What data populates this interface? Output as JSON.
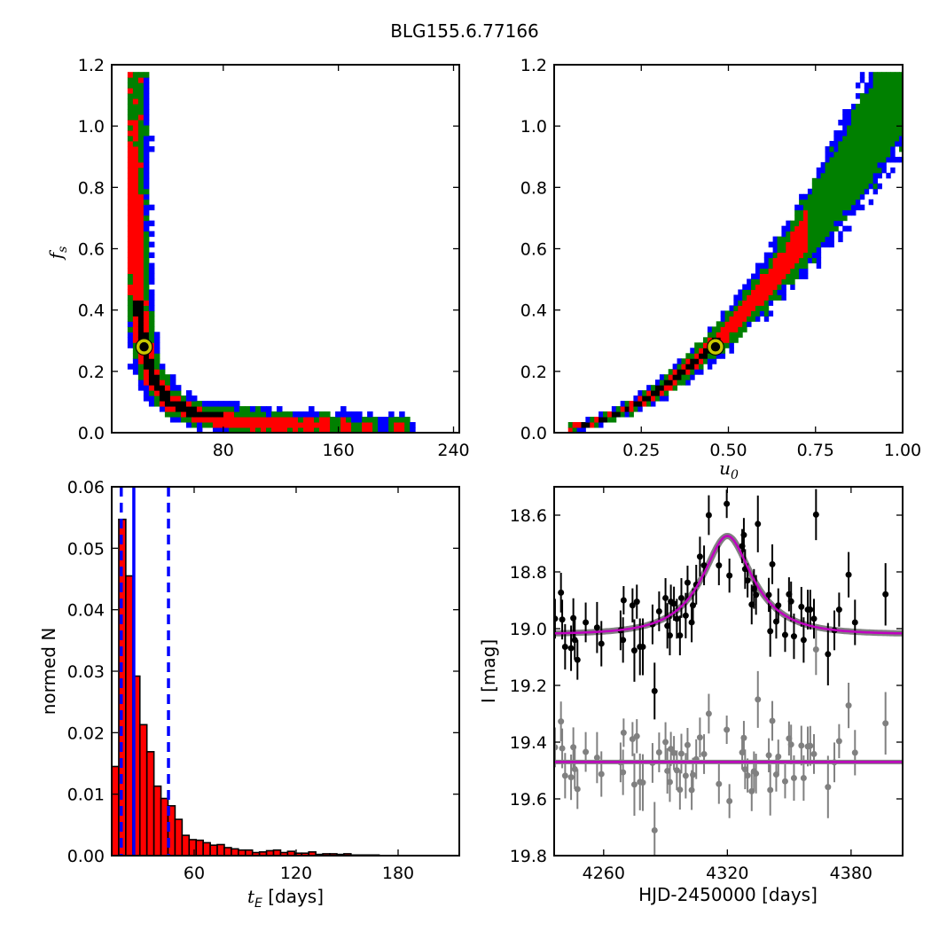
{
  "title": "BLG155.6.77166",
  "colors": {
    "level1": "#000000",
    "level2": "#ff0000",
    "level3": "#008000",
    "level4": "#0000ff",
    "marker": "#c8c800",
    "model": "#c000c0",
    "band": "#808080",
    "residual": "#808080",
    "hist_line": "#0000ff"
  },
  "chart_data": [
    {
      "type": "heatmap",
      "name": "tE-fs",
      "xlabel": "",
      "ylabel": "f",
      "ylabel_sub": "s",
      "xlim": [
        2.5,
        244
      ],
      "ylim": [
        0,
        1.2
      ],
      "xticks": [
        {
          "v": 80,
          "label": "80"
        },
        {
          "v": 160,
          "label": "160"
        },
        {
          "v": 240,
          "label": "240"
        }
      ],
      "yticks": [
        {
          "v": 0,
          "label": "0.0"
        },
        {
          "v": 0.2,
          "label": "0.2"
        },
        {
          "v": 0.4,
          "label": "0.4"
        },
        {
          "v": 0.6,
          "label": "0.6"
        },
        {
          "v": 0.8,
          "label": "0.8"
        },
        {
          "v": 1.0,
          "label": "1.0"
        },
        {
          "v": 1.2,
          "label": "1.2"
        }
      ],
      "relation": {
        "form": "fs = a/(tE - t0)",
        "a": 3.0,
        "t0": 14.3,
        "tE_range": [
          13.5,
          215
        ],
        "fs_max": 1.16
      },
      "best_fit": {
        "tE": 25,
        "fs": 0.28
      }
    },
    {
      "type": "heatmap",
      "name": "u0-fs",
      "xlabel": "u",
      "xlabel_sub": "0",
      "ylabel": "",
      "xlim": [
        0,
        1.0
      ],
      "ylim": [
        0,
        1.2
      ],
      "xticks": [
        {
          "v": 0.25,
          "label": "0.25"
        },
        {
          "v": 0.5,
          "label": "0.50"
        },
        {
          "v": 0.75,
          "label": "0.75"
        },
        {
          "v": 1.0,
          "label": "1.00"
        }
      ],
      "yticks": [
        {
          "v": 0,
          "label": "0.0"
        },
        {
          "v": 0.2,
          "label": "0.2"
        },
        {
          "v": 0.4,
          "label": "0.4"
        },
        {
          "v": 0.6,
          "label": "0.6"
        },
        {
          "v": 0.8,
          "label": "0.8"
        },
        {
          "v": 1.0,
          "label": "1.0"
        },
        {
          "v": 1.2,
          "label": "1.2"
        }
      ],
      "relation": {
        "form": "fs = a*u0^p",
        "a": 1.16,
        "p": 1.83,
        "u0_range": [
          0.04,
          1.0
        ],
        "fs_max": 1.17
      },
      "best_fit": {
        "u0": 0.463,
        "fs": 0.28
      }
    },
    {
      "type": "bar",
      "name": "tE-histogram",
      "xlabel": "t",
      "xlabel_sub": "E",
      "xlabel_suffix": " [days]",
      "ylabel": "normed N",
      "xlim": [
        11.5,
        216
      ],
      "ylim": [
        0,
        0.06
      ],
      "xticks": [
        {
          "v": 60,
          "label": "60"
        },
        {
          "v": 120,
          "label": "120"
        },
        {
          "v": 180,
          "label": "180"
        }
      ],
      "yticks": [
        {
          "v": 0,
          "label": "0.00"
        },
        {
          "v": 0.01,
          "label": "0.01"
        },
        {
          "v": 0.02,
          "label": "0.02"
        },
        {
          "v": 0.03,
          "label": "0.03"
        },
        {
          "v": 0.04,
          "label": "0.04"
        },
        {
          "v": 0.05,
          "label": "0.05"
        },
        {
          "v": 0.06,
          "label": "0.06"
        }
      ],
      "bin_start": 11.5,
      "bin_width": 4.14,
      "values": [
        0.0145,
        0.0547,
        0.0455,
        0.0292,
        0.0213,
        0.0169,
        0.0113,
        0.0093,
        0.0081,
        0.0059,
        0.0033,
        0.0026,
        0.0025,
        0.0021,
        0.0017,
        0.0018,
        0.0013,
        0.0011,
        0.0009,
        0.0009,
        0.0005,
        0.0006,
        0.0008,
        0.0009,
        0.0005,
        0.0007,
        0.0004,
        0.0004,
        0.0006,
        0.0002,
        0.0003,
        0.0003,
        0.0002,
        0.0003,
        0.0001,
        0.0001,
        0.0001,
        0.0001
      ],
      "vlines": [
        {
          "x": 17.1,
          "style": "dashed"
        },
        {
          "x": 24.5,
          "style": "solid"
        },
        {
          "x": 44.9,
          "style": "dashed"
        }
      ]
    },
    {
      "type": "scatter",
      "name": "light-curve",
      "xlabel": "HJD-2450000 [days]",
      "ylabel": "I [mag]",
      "xlim": [
        4236,
        4405
      ],
      "ylim": [
        19.8,
        18.5
      ],
      "y_inverted": true,
      "xticks": [
        {
          "v": 4260,
          "label": "4260"
        },
        {
          "v": 4320,
          "label": "4320"
        },
        {
          "v": 4380,
          "label": "4380"
        }
      ],
      "yticks": [
        {
          "v": 18.6,
          "label": "18.6"
        },
        {
          "v": 18.8,
          "label": "18.8"
        },
        {
          "v": 19.0,
          "label": "19.0"
        },
        {
          "v": 19.2,
          "label": "19.2"
        },
        {
          "v": 19.4,
          "label": "19.4"
        },
        {
          "v": 19.6,
          "label": "19.6"
        },
        {
          "v": 19.8,
          "label": "19.8"
        }
      ],
      "model": {
        "t0": 4320,
        "tE": 25,
        "u0": 0.46,
        "fs": 0.28,
        "baseline": 19.02
      },
      "residual_offset": 19.47,
      "points": [
        [
          4236.4,
          18.965,
          0.07
        ],
        [
          4239.3,
          18.873,
          0.07
        ],
        [
          4239.9,
          18.968,
          0.07
        ],
        [
          4241.3,
          19.064,
          0.08
        ],
        [
          4244.2,
          19.069,
          0.08
        ],
        [
          4245.3,
          18.963,
          0.07
        ],
        [
          4246.0,
          19.04,
          0.07
        ],
        [
          4247.3,
          19.11,
          0.07
        ],
        [
          4251.3,
          18.978,
          0.07
        ],
        [
          4256.8,
          18.996,
          0.09
        ],
        [
          4258.9,
          19.053,
          0.08
        ],
        [
          4268.2,
          19.006,
          0.07
        ],
        [
          4269.4,
          19.04,
          0.08
        ],
        [
          4269.7,
          18.9,
          0.05
        ],
        [
          4274.0,
          18.918,
          0.06
        ],
        [
          4274.9,
          19.077,
          0.11
        ],
        [
          4276.1,
          18.905,
          0.06
        ],
        [
          4277.6,
          19.064,
          0.1
        ],
        [
          4279.0,
          19.064,
          0.1
        ],
        [
          4283.7,
          18.985,
          0.07
        ],
        [
          4284.7,
          19.22,
          0.1
        ],
        [
          4286.9,
          18.939,
          0.07
        ],
        [
          4290.0,
          18.892,
          0.07
        ],
        [
          4290.9,
          18.99,
          0.08
        ],
        [
          4292.1,
          19.024,
          0.07
        ],
        [
          4292.6,
          18.905,
          0.06
        ],
        [
          4294.1,
          18.912,
          0.06
        ],
        [
          4295.5,
          18.965,
          0.07
        ],
        [
          4297.0,
          19.024,
          0.07
        ],
        [
          4297.7,
          18.892,
          0.07
        ],
        [
          4299.8,
          18.954,
          0.08
        ],
        [
          4300.7,
          18.838,
          0.06
        ],
        [
          4302.7,
          18.978,
          0.07
        ],
        [
          4303.3,
          18.918,
          0.06
        ],
        [
          4304.9,
          18.845,
          0.07
        ],
        [
          4306.7,
          18.746,
          0.07
        ],
        [
          4308.7,
          18.777,
          0.07
        ],
        [
          4311.0,
          18.6,
          0.07
        ],
        [
          4315.9,
          18.777,
          0.07
        ],
        [
          4319.7,
          18.56,
          0.05
        ],
        [
          4321.0,
          18.813,
          0.06
        ],
        [
          4327.2,
          18.709,
          0.06
        ],
        [
          4328.0,
          18.67,
          0.06
        ],
        [
          4328.6,
          18.79,
          0.07
        ],
        [
          4329.8,
          18.83,
          0.06
        ],
        [
          4331.8,
          18.915,
          0.07
        ],
        [
          4332.9,
          18.86,
          0.07
        ],
        [
          4333.9,
          18.881,
          0.07
        ],
        [
          4334.8,
          18.631,
          0.1
        ],
        [
          4340.1,
          18.881,
          0.06
        ],
        [
          4340.8,
          19.009,
          0.09
        ],
        [
          4341.8,
          18.773,
          0.07
        ],
        [
          4343.7,
          18.975,
          0.06
        ],
        [
          4344.7,
          18.918,
          0.06
        ],
        [
          4348.0,
          19.022,
          0.06
        ],
        [
          4349.9,
          18.879,
          0.06
        ],
        [
          4350.9,
          18.904,
          0.07
        ],
        [
          4352.3,
          19.027,
          0.08
        ],
        [
          4355.9,
          18.923,
          0.07
        ],
        [
          4357.0,
          19.04,
          0.08
        ],
        [
          4359.0,
          18.933,
          0.07
        ],
        [
          4360.2,
          18.933,
          0.07
        ],
        [
          4362.0,
          18.965,
          0.07
        ],
        [
          4363.0,
          18.598,
          0.09
        ],
        [
          4368.8,
          19.09,
          0.11
        ],
        [
          4371.9,
          19.006,
          0.07
        ],
        [
          4374.2,
          18.933,
          0.06
        ],
        [
          4378.8,
          18.81,
          0.08
        ],
        [
          4381.9,
          18.978,
          0.08
        ],
        [
          4396.7,
          18.879,
          0.11
        ]
      ]
    }
  ]
}
